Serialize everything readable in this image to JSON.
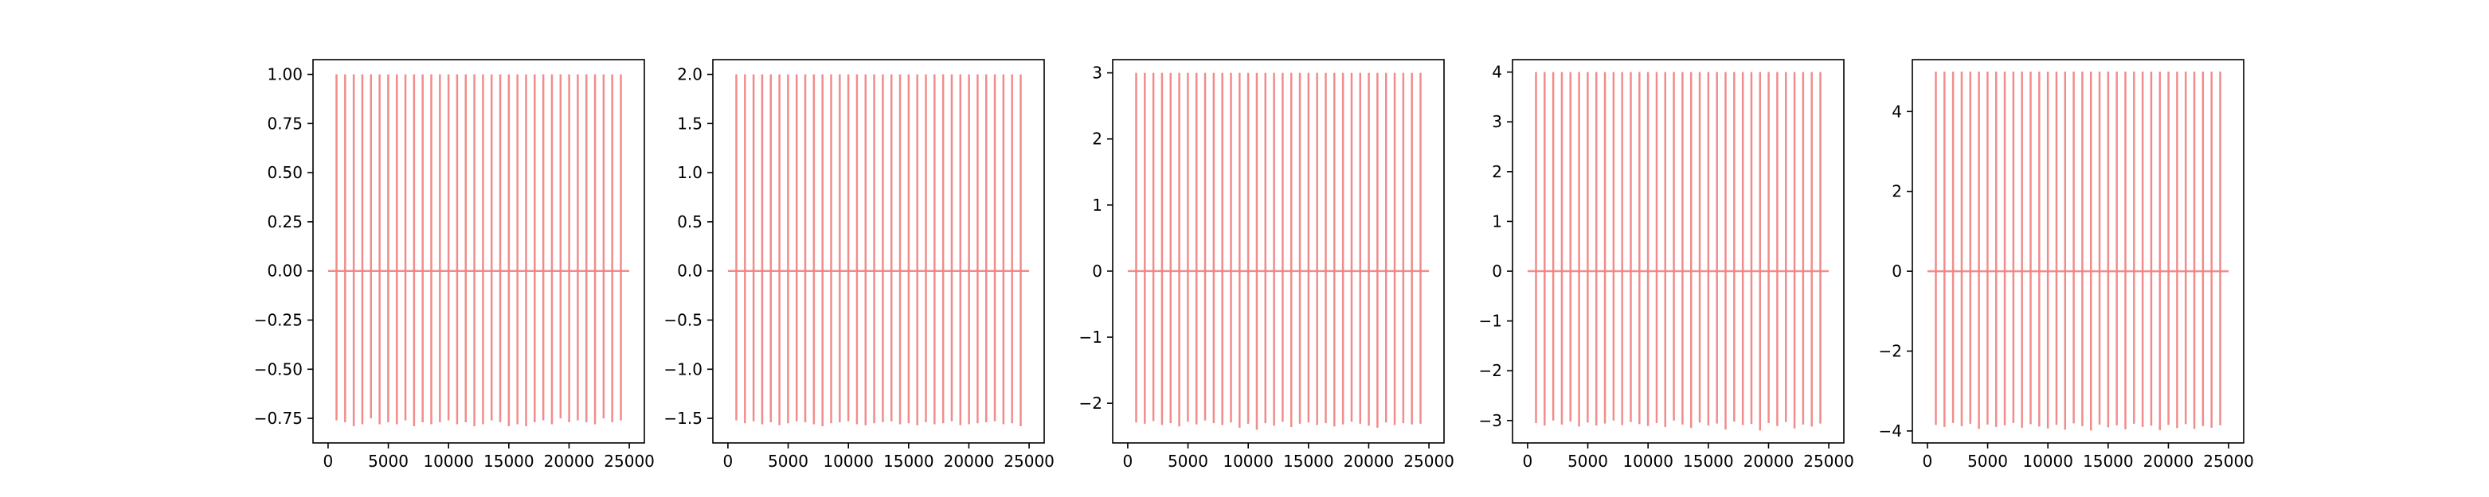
{
  "chart_data": [
    {
      "type": "line",
      "ylim": [
        -0.875,
        1.075
      ],
      "xlim": [
        -1250,
        26250
      ],
      "xticks": [
        "0",
        "5000",
        "10000",
        "15000",
        "20000",
        "25000"
      ],
      "yticks": [
        "1.00",
        "0.75",
        "0.50",
        "0.25",
        "0.00",
        "−0.25",
        "−0.50",
        "−0.75"
      ],
      "pulse_amplitude": 1.0,
      "negative_extents": [
        -0.76,
        -0.77,
        -0.79,
        -0.78,
        -0.75,
        -0.78,
        -0.77,
        -0.78,
        -0.76,
        -0.79,
        -0.77,
        -0.78,
        -0.77,
        -0.76,
        -0.78,
        -0.77,
        -0.79,
        -0.78,
        -0.76,
        -0.77,
        -0.79,
        -0.78,
        -0.79,
        -0.77,
        -0.76,
        -0.78,
        -0.75,
        -0.77,
        -0.76,
        -0.77,
        -0.78,
        -0.75,
        -0.77,
        -0.76
      ]
    },
    {
      "type": "line",
      "ylim": [
        -1.75,
        2.15
      ],
      "xlim": [
        -1250,
        26250
      ],
      "xticks": [
        "0",
        "5000",
        "10000",
        "15000",
        "20000",
        "25000"
      ],
      "yticks": [
        "2.0",
        "1.5",
        "1.0",
        "0.5",
        "0.0",
        "−0.5",
        "−1.0",
        "−1.5"
      ],
      "pulse_amplitude": 2.0,
      "negative_extents": [
        -1.52,
        -1.55,
        -1.53,
        -1.56,
        -1.54,
        -1.57,
        -1.55,
        -1.53,
        -1.54,
        -1.56,
        -1.58,
        -1.55,
        -1.54,
        -1.53,
        -1.56,
        -1.57,
        -1.55,
        -1.54,
        -1.53,
        -1.56,
        -1.55,
        -1.57,
        -1.54,
        -1.56,
        -1.55,
        -1.53,
        -1.57,
        -1.56,
        -1.55,
        -1.54,
        -1.53,
        -1.56,
        -1.55,
        -1.58
      ]
    },
    {
      "type": "line",
      "ylim": [
        -2.6,
        3.2
      ],
      "xlim": [
        -1250,
        26250
      ],
      "xticks": [
        "0",
        "5000",
        "10000",
        "15000",
        "20000",
        "25000"
      ],
      "yticks": [
        "3",
        "2",
        "1",
        "0",
        "−1",
        "−2"
      ],
      "pulse_amplitude": 3.0,
      "negative_extents": [
        -2.29,
        -2.31,
        -2.27,
        -2.33,
        -2.3,
        -2.35,
        -2.28,
        -2.32,
        -2.26,
        -2.3,
        -2.33,
        -2.29,
        -2.37,
        -2.31,
        -2.4,
        -2.3,
        -2.34,
        -2.28,
        -2.36,
        -2.31,
        -2.29,
        -2.33,
        -2.3,
        -2.35,
        -2.32,
        -2.28,
        -2.31,
        -2.34,
        -2.37,
        -2.29,
        -2.33,
        -2.3,
        -2.32,
        -2.31
      ]
    },
    {
      "type": "line",
      "ylim": [
        -3.45,
        4.25
      ],
      "xlim": [
        -1250,
        26250
      ],
      "xticks": [
        "0",
        "5000",
        "10000",
        "15000",
        "20000",
        "25000"
      ],
      "yticks": [
        "4",
        "3",
        "2",
        "1",
        "0",
        "−1",
        "−2",
        "−3"
      ],
      "pulse_amplitude": 4.0,
      "negative_extents": [
        -3.05,
        -3.1,
        -3.0,
        -3.08,
        -3.02,
        -3.12,
        -3.04,
        -3.1,
        -3.06,
        -3.0,
        -3.09,
        -3.03,
        -3.07,
        -3.11,
        -3.05,
        -3.13,
        -3.0,
        -3.08,
        -3.15,
        -3.04,
        -3.1,
        -3.06,
        -3.18,
        -3.02,
        -3.09,
        -3.07,
        -3.2,
        -3.05,
        -3.11,
        -3.03,
        -3.16,
        -3.08,
        -3.12,
        -3.06
      ]
    },
    {
      "type": "line",
      "ylim": [
        -4.3,
        5.3
      ],
      "xlim": [
        -1250,
        26250
      ],
      "xticks": [
        "0",
        "5000",
        "10000",
        "15000",
        "20000",
        "25000"
      ],
      "yticks": [
        "4",
        "2",
        "0",
        "−2",
        "−4"
      ],
      "pulse_amplitude": 5.0,
      "negative_extents": [
        -3.85,
        -3.9,
        -3.8,
        -3.88,
        -3.82,
        -3.95,
        -3.84,
        -3.9,
        -3.86,
        -3.8,
        -3.92,
        -3.83,
        -3.89,
        -3.94,
        -3.85,
        -3.97,
        -3.81,
        -3.88,
        -3.99,
        -3.84,
        -3.91,
        -3.86,
        -3.96,
        -3.82,
        -3.9,
        -3.87,
        -3.98,
        -3.85,
        -3.93,
        -3.83,
        -3.95,
        -3.88,
        -3.92,
        -3.86
      ]
    }
  ],
  "colors": {
    "signal": "#f08080",
    "axes": "#000000",
    "background": "#ffffff"
  }
}
